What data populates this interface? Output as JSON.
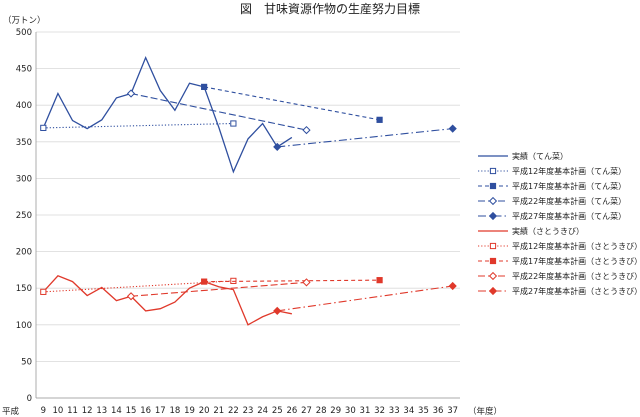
{
  "chart_data": {
    "type": "line",
    "title": "図　甘味資源作物の生産努力目標",
    "yunit": "（万トン）",
    "xunit": "（年度）",
    "era_label": "平成",
    "ylim": [
      0,
      500
    ],
    "yticks": [
      0,
      50,
      100,
      150,
      200,
      250,
      300,
      350,
      400,
      450,
      500
    ],
    "xlim": [
      9,
      37
    ],
    "xticks": [
      9,
      10,
      11,
      12,
      13,
      14,
      15,
      16,
      17,
      18,
      19,
      20,
      21,
      22,
      23,
      24,
      25,
      26,
      27,
      28,
      29,
      30,
      31,
      32,
      33,
      34,
      35,
      36,
      37
    ],
    "grid": "horizontal",
    "legend_position": "right",
    "colors": {
      "tensai": "#2f4f9f",
      "satoukibi": "#e0392b"
    },
    "series": [
      {
        "name": "実績（てん菜）",
        "group": "tensai",
        "dash": "solid",
        "marker": "none",
        "x": [
          9,
          10,
          11,
          12,
          13,
          14,
          15,
          16,
          17,
          18,
          19,
          20,
          21,
          22,
          23,
          24,
          25,
          26
        ],
        "y": [
          369,
          416,
          379,
          368,
          380,
          410,
          416,
          465,
          420,
          393,
          430,
          425,
          370,
          309,
          354,
          375,
          343,
          356
        ]
      },
      {
        "name": "平成12年度基本計画（てん菜）",
        "group": "tensai",
        "dash": "dotted",
        "marker": "open-square",
        "x": [
          9,
          22
        ],
        "y": [
          369,
          375
        ]
      },
      {
        "name": "平成17年度基本計画（てん菜）",
        "group": "tensai",
        "dash": "dashed",
        "marker": "filled-square",
        "x": [
          20,
          32
        ],
        "y": [
          425,
          380
        ]
      },
      {
        "name": "平成22年度基本計画（てん菜）",
        "group": "tensai",
        "dash": "longdash",
        "marker": "open-diamond",
        "x": [
          15,
          27
        ],
        "y": [
          416,
          366
        ]
      },
      {
        "name": "平成27年度基本計画（てん菜）",
        "group": "tensai",
        "dash": "dashdot",
        "marker": "filled-diamond",
        "x": [
          25,
          37
        ],
        "y": [
          343,
          368
        ]
      },
      {
        "name": "実績（さとうきび）",
        "group": "satoukibi",
        "dash": "solid",
        "marker": "none",
        "x": [
          9,
          10,
          11,
          12,
          13,
          14,
          15,
          16,
          17,
          18,
          19,
          20,
          21,
          22,
          23,
          24,
          25,
          26
        ],
        "y": [
          145,
          167,
          159,
          140,
          151,
          133,
          139,
          119,
          122,
          131,
          150,
          159,
          152,
          148,
          100,
          111,
          119,
          115
        ]
      },
      {
        "name": "平成12年度基本計画（さとうきび）",
        "group": "satoukibi",
        "dash": "dotted",
        "marker": "open-square",
        "x": [
          9,
          22
        ],
        "y": [
          145,
          160
        ]
      },
      {
        "name": "平成17年度基本計画（さとうきび）",
        "group": "satoukibi",
        "dash": "dashed",
        "marker": "filled-square",
        "x": [
          20,
          32
        ],
        "y": [
          159,
          161
        ]
      },
      {
        "name": "平成22年度基本計画（さとうきび）",
        "group": "satoukibi",
        "dash": "longdash",
        "marker": "open-diamond",
        "x": [
          15,
          27
        ],
        "y": [
          139,
          158
        ]
      },
      {
        "name": "平成27年度基本計画（さとうきび）",
        "group": "satoukibi",
        "dash": "dashdot",
        "marker": "filled-diamond",
        "x": [
          25,
          37
        ],
        "y": [
          119,
          153
        ]
      }
    ]
  }
}
